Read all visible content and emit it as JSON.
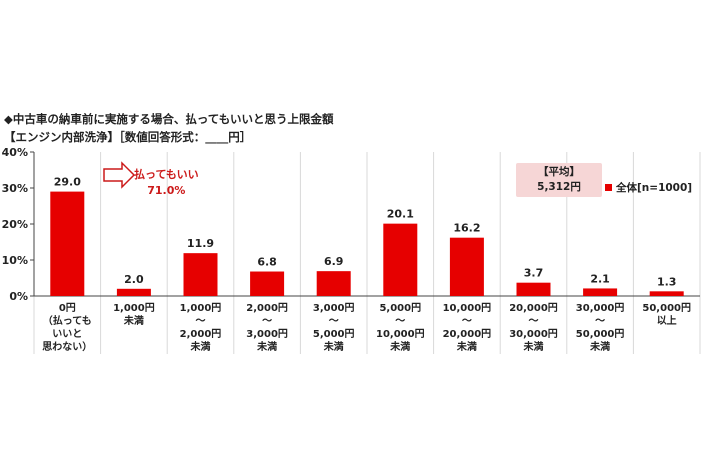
{
  "title": "◆中古車の納車前に実施する場合、払ってもいいと思う上限金額",
  "subtitle": "【エンジン内部洗浄】［数値回答形式：____円］",
  "average": {
    "label": "【平均】",
    "value": "5,312円"
  },
  "legend_label": "全体[n=1000]",
  "callout": {
    "label": "払ってもいい",
    "value": "71.0%"
  },
  "colors": {
    "bar": "#e60000",
    "grid": "#d9d9d9",
    "callout": "#cc1a1a",
    "avg_box": "#f6d6d6"
  },
  "chart_data": {
    "type": "bar",
    "title": "◆中古車の納車前に実施する場合、払ってもいいと思う上限金額",
    "categories": [
      "0円\n（払っても\nいいと\n思わない）",
      "1,000円\n未満",
      "1,000円\n～\n2,000円\n未満",
      "2,000円\n～\n3,000円\n未満",
      "3,000円\n～\n5,000円\n未満",
      "5,000円\n～\n10,000円\n未満",
      "10,000円\n～\n20,000円\n未満",
      "20,000円\n～\n30,000円\n未満",
      "30,000円\n～\n50,000円\n未満",
      "50,000円\n以上"
    ],
    "series": [
      {
        "name": "全体[n=1000]",
        "values": [
          29.0,
          2.0,
          11.9,
          6.8,
          6.9,
          20.1,
          16.2,
          3.7,
          2.1,
          1.3
        ]
      }
    ],
    "data_labels": [
      "29.0",
      "2.0",
      "11.9",
      "6.8",
      "6.9",
      "20.1",
      "16.2",
      "3.7",
      "2.1",
      "1.3"
    ],
    "yticks": [
      "0%",
      "10%",
      "20%",
      "30%",
      "40%"
    ],
    "ylim": [
      0,
      40
    ],
    "grid": false,
    "legend_position": "top-right"
  }
}
